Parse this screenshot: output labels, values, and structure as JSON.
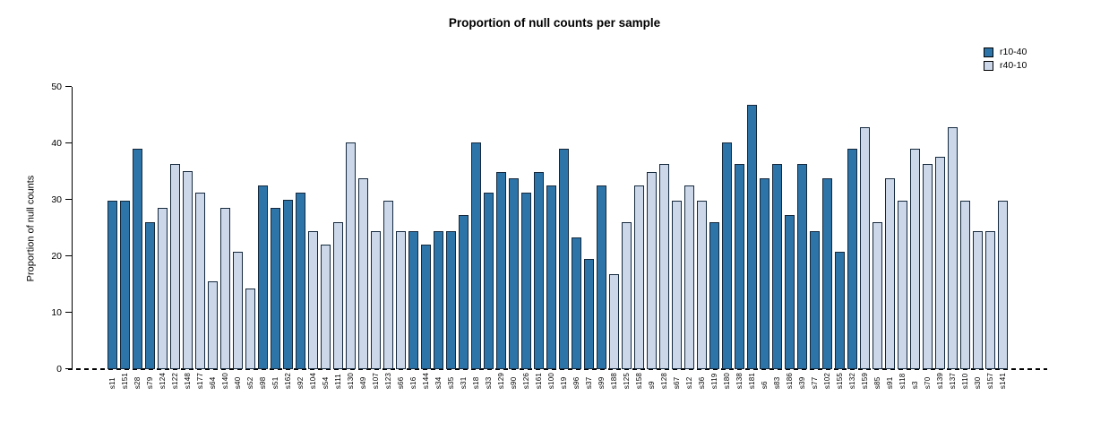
{
  "title": "Proportion of null counts per sample",
  "y_axis": {
    "label": "Proportion of null counts",
    "ticks": [
      0,
      10,
      20,
      30,
      40,
      50
    ],
    "max": 50
  },
  "legend": [
    {
      "label": "r10-40",
      "color": "#2d74a9"
    },
    {
      "label": "r40-10",
      "color": "#ccd8ea"
    }
  ],
  "colors": {
    "dark": "#2d74a9",
    "light": "#ccd8ea",
    "border": "#15293d"
  },
  "chart_data": {
    "type": "bar",
    "title": "Proportion of null counts per sample",
    "xlabel": "",
    "ylabel": "Proportion of null counts",
    "ylim": [
      0,
      50
    ],
    "grid": false,
    "legend_position": "top-right",
    "series_names": [
      "r10-40",
      "r40-10"
    ],
    "bars": [
      {
        "label": "s11",
        "value": 29.8,
        "series": "r10-40"
      },
      {
        "label": "s151",
        "value": 29.8,
        "series": "r10-40"
      },
      {
        "label": "s28",
        "value": 39.0,
        "series": "r10-40"
      },
      {
        "label": "s79",
        "value": 26.0,
        "series": "r10-40"
      },
      {
        "label": "s124",
        "value": 28.6,
        "series": "r40-10"
      },
      {
        "label": "s122",
        "value": 36.4,
        "series": "r40-10"
      },
      {
        "label": "s148",
        "value": 35.1,
        "series": "r40-10"
      },
      {
        "label": "s177",
        "value": 31.2,
        "series": "r40-10"
      },
      {
        "label": "s64",
        "value": 15.6,
        "series": "r40-10"
      },
      {
        "label": "s140",
        "value": 28.5,
        "series": "r40-10"
      },
      {
        "label": "s40",
        "value": 20.8,
        "series": "r40-10"
      },
      {
        "label": "s52",
        "value": 14.3,
        "series": "r40-10"
      },
      {
        "label": "s98",
        "value": 32.5,
        "series": "r10-40"
      },
      {
        "label": "s51",
        "value": 28.6,
        "series": "r10-40"
      },
      {
        "label": "s162",
        "value": 30.0,
        "series": "r10-40"
      },
      {
        "label": "s92",
        "value": 31.2,
        "series": "r10-40"
      },
      {
        "label": "s104",
        "value": 24.5,
        "series": "r40-10"
      },
      {
        "label": "s54",
        "value": 22.1,
        "series": "r40-10"
      },
      {
        "label": "s111",
        "value": 26.0,
        "series": "r40-10"
      },
      {
        "label": "s130",
        "value": 40.2,
        "series": "r40-10"
      },
      {
        "label": "s49",
        "value": 33.8,
        "series": "r40-10"
      },
      {
        "label": "s107",
        "value": 24.5,
        "series": "r40-10"
      },
      {
        "label": "s123",
        "value": 29.8,
        "series": "r40-10"
      },
      {
        "label": "s66",
        "value": 24.5,
        "series": "r40-10"
      },
      {
        "label": "s16",
        "value": 24.5,
        "series": "r10-40"
      },
      {
        "label": "s144",
        "value": 22.1,
        "series": "r10-40"
      },
      {
        "label": "s34",
        "value": 24.5,
        "series": "r10-40"
      },
      {
        "label": "s35",
        "value": 24.5,
        "series": "r10-40"
      },
      {
        "label": "s31",
        "value": 27.3,
        "series": "r10-40"
      },
      {
        "label": "s18",
        "value": 40.2,
        "series": "r10-40"
      },
      {
        "label": "s33",
        "value": 31.2,
        "series": "r10-40"
      },
      {
        "label": "s129",
        "value": 35.0,
        "series": "r10-40"
      },
      {
        "label": "s90",
        "value": 33.8,
        "series": "r10-40"
      },
      {
        "label": "s126",
        "value": 31.2,
        "series": "r10-40"
      },
      {
        "label": "s161",
        "value": 35.0,
        "series": "r10-40"
      },
      {
        "label": "s100",
        "value": 32.5,
        "series": "r10-40"
      },
      {
        "label": "s19",
        "value": 39.0,
        "series": "r10-40"
      },
      {
        "label": "s96",
        "value": 23.4,
        "series": "r10-40"
      },
      {
        "label": "s37",
        "value": 19.5,
        "series": "r10-40"
      },
      {
        "label": "s99",
        "value": 32.5,
        "series": "r10-40"
      },
      {
        "label": "s188",
        "value": 16.9,
        "series": "r40-10"
      },
      {
        "label": "s125",
        "value": 26.0,
        "series": "r40-10"
      },
      {
        "label": "s158",
        "value": 32.5,
        "series": "r40-10"
      },
      {
        "label": "s9",
        "value": 35.0,
        "series": "r40-10"
      },
      {
        "label": "s128",
        "value": 36.4,
        "series": "r40-10"
      },
      {
        "label": "s67",
        "value": 29.9,
        "series": "r40-10"
      },
      {
        "label": "s12",
        "value": 32.5,
        "series": "r40-10"
      },
      {
        "label": "s36",
        "value": 29.8,
        "series": "r40-10"
      },
      {
        "label": "s119",
        "value": 26.0,
        "series": "r10-40"
      },
      {
        "label": "s180",
        "value": 40.2,
        "series": "r10-40"
      },
      {
        "label": "s138",
        "value": 36.4,
        "series": "r10-40"
      },
      {
        "label": "s181",
        "value": 46.8,
        "series": "r10-40"
      },
      {
        "label": "s6",
        "value": 33.8,
        "series": "r10-40"
      },
      {
        "label": "s83",
        "value": 36.4,
        "series": "r10-40"
      },
      {
        "label": "s186",
        "value": 27.3,
        "series": "r10-40"
      },
      {
        "label": "s39",
        "value": 36.4,
        "series": "r10-40"
      },
      {
        "label": "s77",
        "value": 24.5,
        "series": "r10-40"
      },
      {
        "label": "s102",
        "value": 33.8,
        "series": "r10-40"
      },
      {
        "label": "s155",
        "value": 20.8,
        "series": "r10-40"
      },
      {
        "label": "s132",
        "value": 39.0,
        "series": "r10-40"
      },
      {
        "label": "s159",
        "value": 42.9,
        "series": "r40-10"
      },
      {
        "label": "s85",
        "value": 26.0,
        "series": "r40-10"
      },
      {
        "label": "s91",
        "value": 33.8,
        "series": "r40-10"
      },
      {
        "label": "s118",
        "value": 29.9,
        "series": "r40-10"
      },
      {
        "label": "s3",
        "value": 39.0,
        "series": "r40-10"
      },
      {
        "label": "s70",
        "value": 36.4,
        "series": "r40-10"
      },
      {
        "label": "s139",
        "value": 37.7,
        "series": "r40-10"
      },
      {
        "label": "s137",
        "value": 42.9,
        "series": "r40-10"
      },
      {
        "label": "s110",
        "value": 29.8,
        "series": "r40-10"
      },
      {
        "label": "s30",
        "value": 24.5,
        "series": "r40-10"
      },
      {
        "label": "s157",
        "value": 24.5,
        "series": "r40-10"
      },
      {
        "label": "s141",
        "value": 29.8,
        "series": "r40-10"
      }
    ]
  }
}
